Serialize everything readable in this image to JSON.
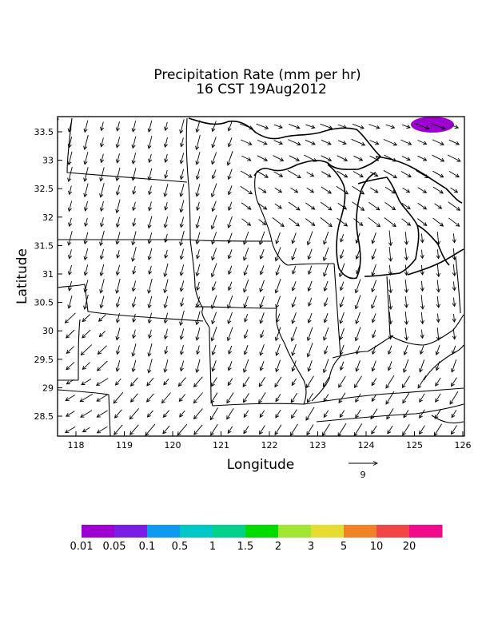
{
  "title": "Precipitation Rate (mm per hr)",
  "subtitle": "16 CST 19Aug2012",
  "axes": {
    "xlabel": "Longitude",
    "ylabel": "Latitude",
    "x_ticks": [
      "118",
      "119",
      "120",
      "121",
      "122",
      "123",
      "124",
      "125",
      "126"
    ],
    "y_ticks": [
      "28.5",
      "29",
      "29.5",
      "30",
      "30.5",
      "31",
      "31.5",
      "32",
      "32.5",
      "33",
      "33.5"
    ]
  },
  "vector_reference": {
    "label": "9"
  },
  "colorbar": {
    "colors": [
      "#9e00d2",
      "#7a1ee6",
      "#0f9af0",
      "#00c8c8",
      "#00d28c",
      "#00dc00",
      "#a0e632",
      "#e6dc32",
      "#f08228",
      "#f04646",
      "#f00a8c"
    ],
    "labels": [
      "0.01",
      "0.05",
      "0.1",
      "0.5",
      "1",
      "1.5",
      "2",
      "3",
      "5",
      "10",
      "20"
    ]
  },
  "precip_patch": {
    "color": "#9e00d2"
  }
}
